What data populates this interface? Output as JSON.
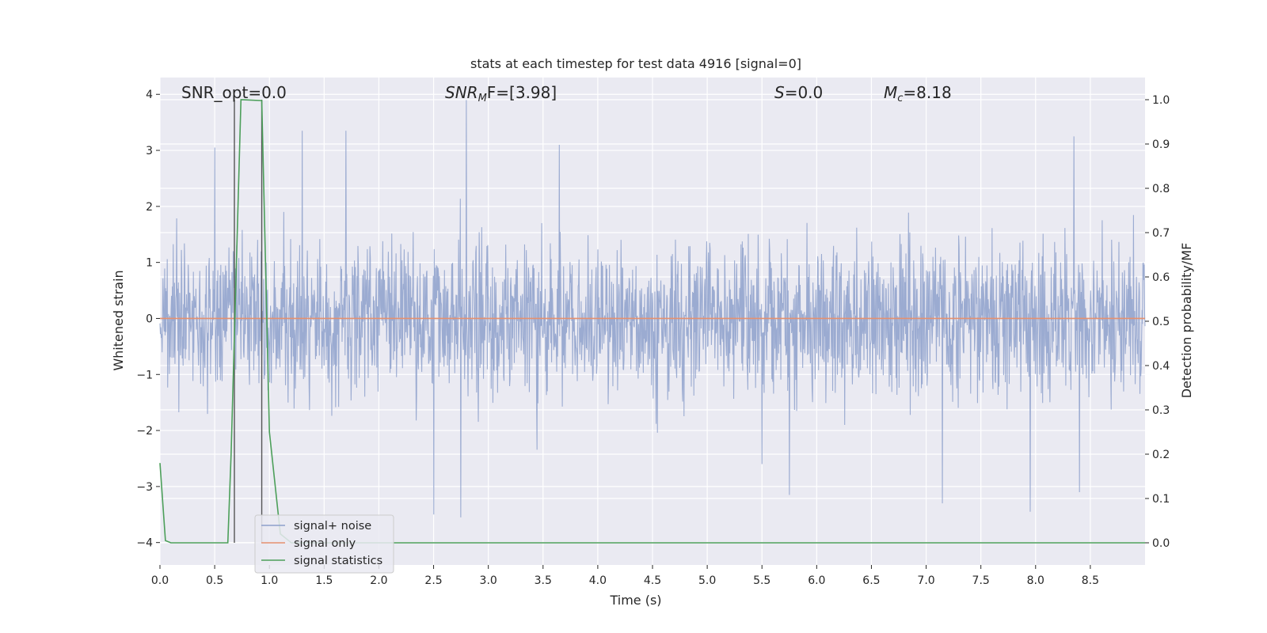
{
  "chart_data": {
    "type": "line",
    "title": "stats at each timestep for test data 4916 [signal=0]",
    "xlabel": "Time (s)",
    "ylabel_left": "Whitened strain",
    "ylabel_right": "Detection probability/MF",
    "xlim": [
      0,
      9.0
    ],
    "ylim_left": [
      -4.4,
      4.3
    ],
    "ylim_right": [
      -0.05,
      1.05
    ],
    "xticks": [
      "0.0",
      "0.5",
      "1.0",
      "1.5",
      "2.0",
      "2.5",
      "3.0",
      "3.5",
      "4.0",
      "4.5",
      "5.0",
      "5.5",
      "6.0",
      "6.5",
      "7.0",
      "7.5",
      "8.0",
      "8.5"
    ],
    "yticks_left": [
      "4",
      "3",
      "2",
      "1",
      "0",
      "−1",
      "−2",
      "−3",
      "−4"
    ],
    "yticks_right": [
      "1.0",
      "0.9",
      "0.8",
      "0.7",
      "0.6",
      "0.5",
      "0.4",
      "0.3",
      "0.2",
      "0.1",
      "0.0"
    ],
    "grid": true,
    "legend_position": "lower-left",
    "annotations": {
      "snr_opt": "SNR_opt=0.0",
      "snr_mf_base": "SNR",
      "snr_mf_sub": "M",
      "snr_mf_rest": "F=[3.98]",
      "s_var": "S",
      "s_rest": "=0.0",
      "mc_var": "M",
      "mc_sub": "c",
      "mc_rest": "=8.18"
    },
    "series": [
      {
        "name": "signal+ noise",
        "axis": "left",
        "color": "#8DA0CB",
        "description_values": "whitened strain noise, approx. gaussian, range about -3.5 to 3.9",
        "x_range": [
          0,
          9.0
        ],
        "envelope_typical": [
          -2.0,
          2.0
        ],
        "peaks": [
          [
            0.5,
            3.05
          ],
          [
            1.3,
            3.35
          ],
          [
            1.7,
            3.35
          ],
          [
            2.8,
            3.9
          ],
          [
            3.65,
            3.1
          ],
          [
            8.35,
            3.25
          ],
          [
            2.5,
            -3.5
          ],
          [
            2.75,
            -3.55
          ],
          [
            5.5,
            -2.6
          ],
          [
            5.75,
            -3.15
          ],
          [
            7.15,
            -3.3
          ],
          [
            7.95,
            -3.45
          ],
          [
            8.4,
            -3.1
          ]
        ]
      },
      {
        "name": "signal only",
        "axis": "left",
        "color": "#E5906E",
        "x": [
          0,
          9.0
        ],
        "y": [
          0,
          0
        ]
      },
      {
        "name": "signal statistics",
        "axis": "right",
        "color": "#4C9F5A",
        "x": [
          0.0,
          0.05,
          0.1,
          0.62,
          0.65,
          0.74,
          0.93,
          1.0,
          1.1,
          1.2,
          9.0
        ],
        "y": [
          0.18,
          0.005,
          0.0,
          0.0,
          0.2,
          1.0,
          0.998,
          0.25,
          0.02,
          0.0,
          0.0
        ]
      }
    ],
    "vlines": [
      0.68,
      0.93
    ]
  }
}
